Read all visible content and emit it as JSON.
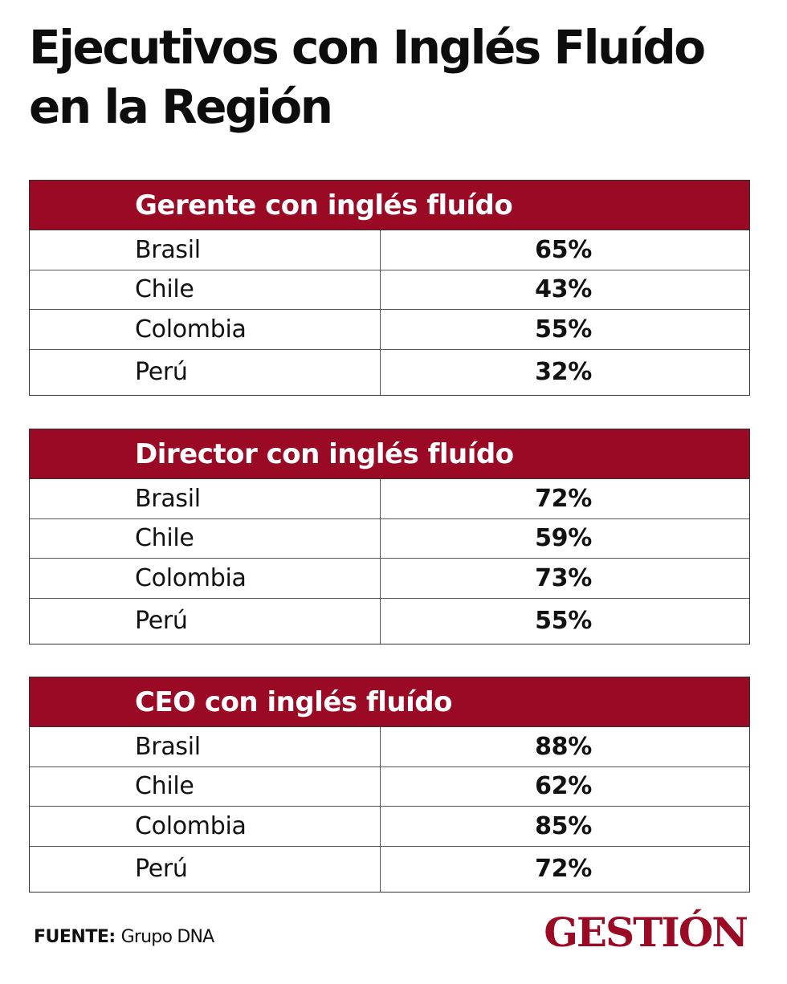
{
  "title": {
    "line1": "Ejecutivos con Inglés Fluído",
    "line2": "en la Región"
  },
  "chart_data": {
    "type": "table",
    "title": "Ejecutivos con Inglés Fluído en la Región",
    "tables": [
      {
        "header": "Gerente con inglés fluído",
        "rows": [
          {
            "country": "Brasil",
            "value": "65%"
          },
          {
            "country": "Chile",
            "value": "43%"
          },
          {
            "country": "Colombia",
            "value": "55%"
          },
          {
            "country": "Perú",
            "value": "32%"
          }
        ]
      },
      {
        "header": "Director con inglés fluído",
        "rows": [
          {
            "country": "Brasil",
            "value": "72%"
          },
          {
            "country": "Chile",
            "value": "59%"
          },
          {
            "country": "Colombia",
            "value": "73%"
          },
          {
            "country": "Perú",
            "value": "55%"
          }
        ]
      },
      {
        "header": "CEO con inglés fluído",
        "rows": [
          {
            "country": "Brasil",
            "value": "88%"
          },
          {
            "country": "Chile",
            "value": "62%"
          },
          {
            "country": "Colombia",
            "value": "85%"
          },
          {
            "country": "Perú",
            "value": "72%"
          }
        ]
      }
    ]
  },
  "footer": {
    "source_label": "FUENTE:",
    "source_value": "Grupo DNA",
    "brand": "GESTIÓN"
  },
  "colors": {
    "header_bg": "#9a0a25",
    "brand": "#9a0a25"
  }
}
